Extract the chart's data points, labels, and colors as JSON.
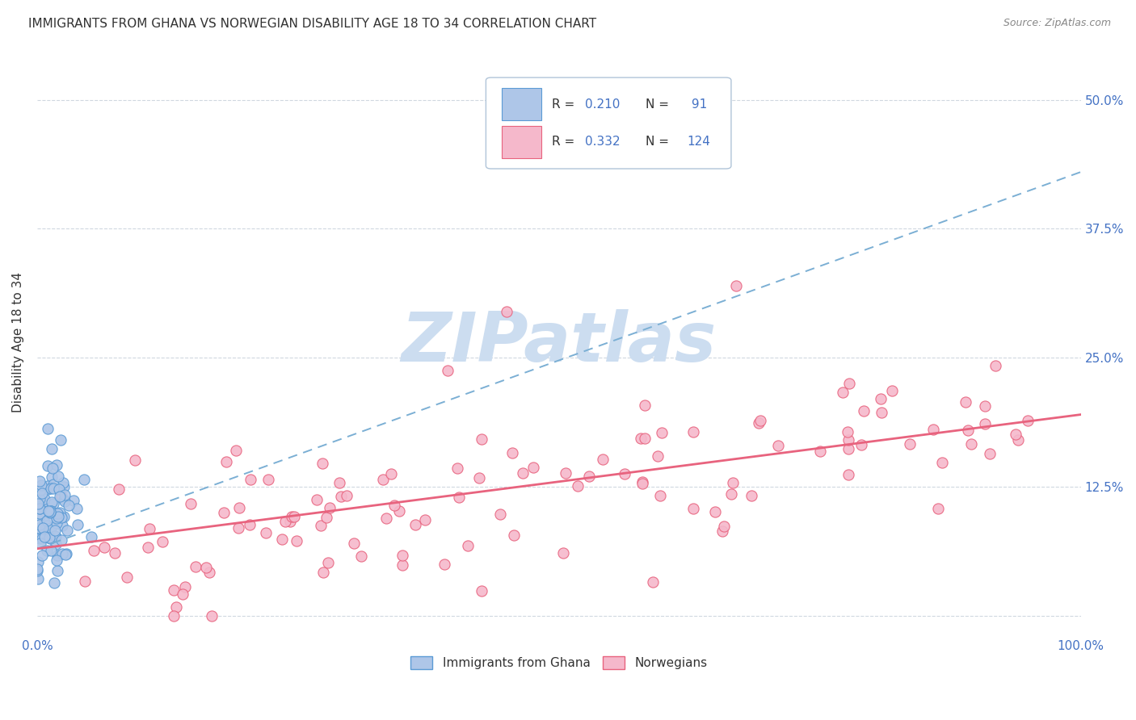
{
  "title": "IMMIGRANTS FROM GHANA VS NORWEGIAN DISABILITY AGE 18 TO 34 CORRELATION CHART",
  "source": "Source: ZipAtlas.com",
  "ylabel": "Disability Age 18 to 34",
  "xlim": [
    0,
    1.0
  ],
  "ylim": [
    -0.02,
    0.55
  ],
  "yticks": [
    0.0,
    0.125,
    0.25,
    0.375,
    0.5
  ],
  "yticklabels": [
    "",
    "12.5%",
    "25.0%",
    "37.5%",
    "50.0%"
  ],
  "xtick_positions": [
    0.0,
    0.1,
    0.2,
    0.3,
    0.4,
    0.5,
    0.6,
    0.7,
    0.8,
    0.9,
    1.0
  ],
  "xticklabels": [
    "0.0%",
    "",
    "",
    "",
    "",
    "",
    "",
    "",
    "",
    "",
    "100.0%"
  ],
  "ghana_color": "#aec6e8",
  "ghana_edge_color": "#5b9bd5",
  "norwegian_color": "#f5b8cb",
  "norwegian_edge_color": "#e8637e",
  "ghana_R": 0.21,
  "ghana_N": 91,
  "norwegian_R": 0.332,
  "norwegian_N": 124,
  "ghana_trend_color": "#7bafd4",
  "ghana_trend_style": "--",
  "norwegian_trend_color": "#e8637e",
  "norwegian_trend_style": "-",
  "ghana_trend_x0": 0.0,
  "ghana_trend_x1": 1.0,
  "ghana_trend_y0": 0.065,
  "ghana_trend_y1": 0.43,
  "norwegian_trend_x0": 0.0,
  "norwegian_trend_x1": 1.0,
  "norwegian_trend_y0": 0.065,
  "norwegian_trend_y1": 0.195,
  "watermark_text": "ZIPatlas",
  "watermark_color": "#ccddf0",
  "background_color": "#ffffff",
  "grid_color": "#d0d8e0",
  "axis_tick_color": "#4472c4",
  "ylabel_color": "#333333",
  "legend_label_color": "#4472c4",
  "title_color": "#333333",
  "source_color": "#888888"
}
